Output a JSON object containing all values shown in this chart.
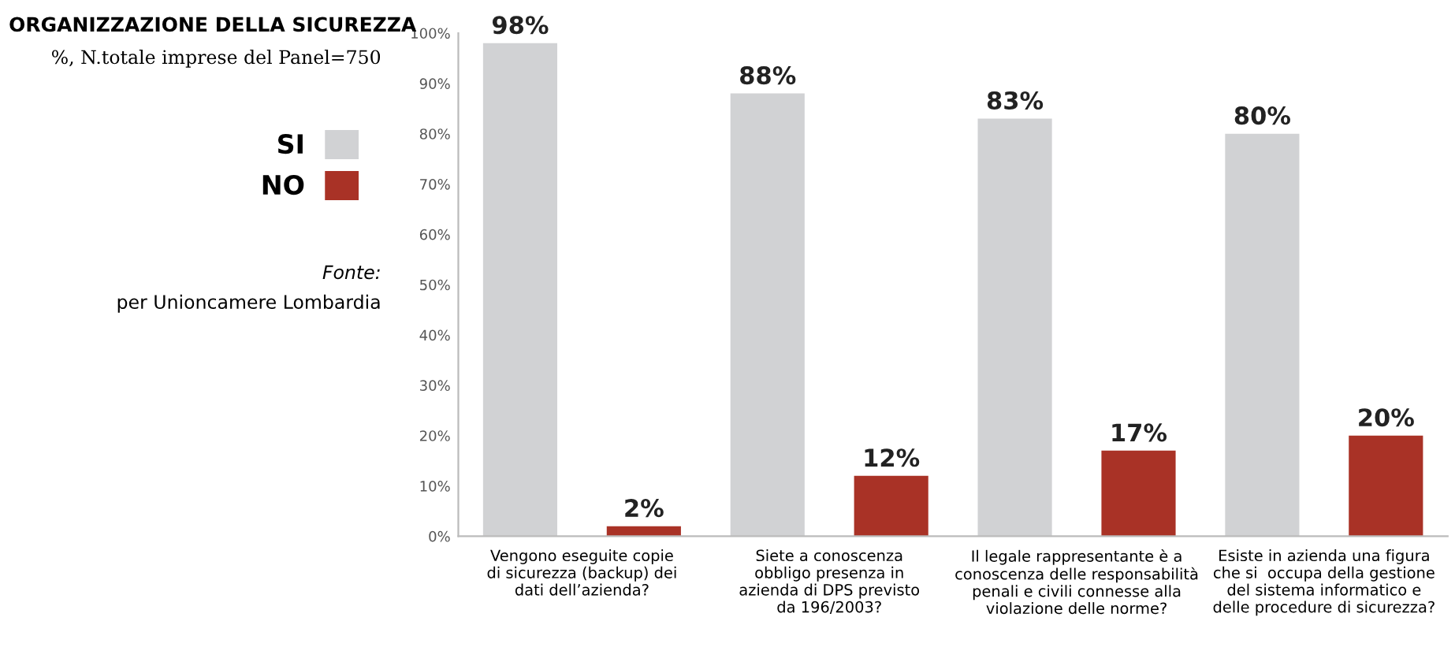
{
  "chart_data": {
    "type": "bar",
    "title": "ORGANIZZAZIONE DELLA SICUREZZA",
    "subtitle": "%, N.totale imprese del Panel=750",
    "categories": [
      "Vengono eseguite copie\ndi sicurezza (backup) dei\ndati dell’azienda?",
      "Siete a conoscenza\nobbligo presenza in\nazienda di DPS previsto\nda 196/2003?",
      "Il legale rappresentante è a\nconoscenza delle responsabilità\npenali e civili connesse alla\nviolazione delle norme?",
      "Esiste in azienda una figura\nche si  occupa della gestione\ndel sistema informatico e\ndelle procedure di sicurezza?"
    ],
    "series": [
      {
        "name": "SI",
        "color": "#d1d2d4",
        "values": [
          98,
          88,
          83,
          80
        ],
        "value_labels": [
          "98%",
          "88%",
          "83%",
          "80%"
        ]
      },
      {
        "name": "NO",
        "color": "#a93226",
        "values": [
          2,
          12,
          17,
          20
        ],
        "value_labels": [
          "2%",
          "12%",
          "17%",
          "20%"
        ]
      }
    ],
    "ylim": [
      0,
      100
    ],
    "yticks": [
      {
        "value": 0,
        "label": "0%"
      },
      {
        "value": 10,
        "label": "10%"
      },
      {
        "value": 20,
        "label": "20%"
      },
      {
        "value": 30,
        "label": "30%"
      },
      {
        "value": 40,
        "label": "40%"
      },
      {
        "value": 50,
        "label": "50%"
      },
      {
        "value": 60,
        "label": "60%"
      },
      {
        "value": 70,
        "label": "70%"
      },
      {
        "value": 80,
        "label": "80%"
      },
      {
        "value": 90,
        "label": "90%"
      },
      {
        "value": 100,
        "label": "100%"
      }
    ],
    "grid": false,
    "legend": "left",
    "annotations": [
      "Fonte:",
      "per Unioncamere Lombardia"
    ]
  }
}
